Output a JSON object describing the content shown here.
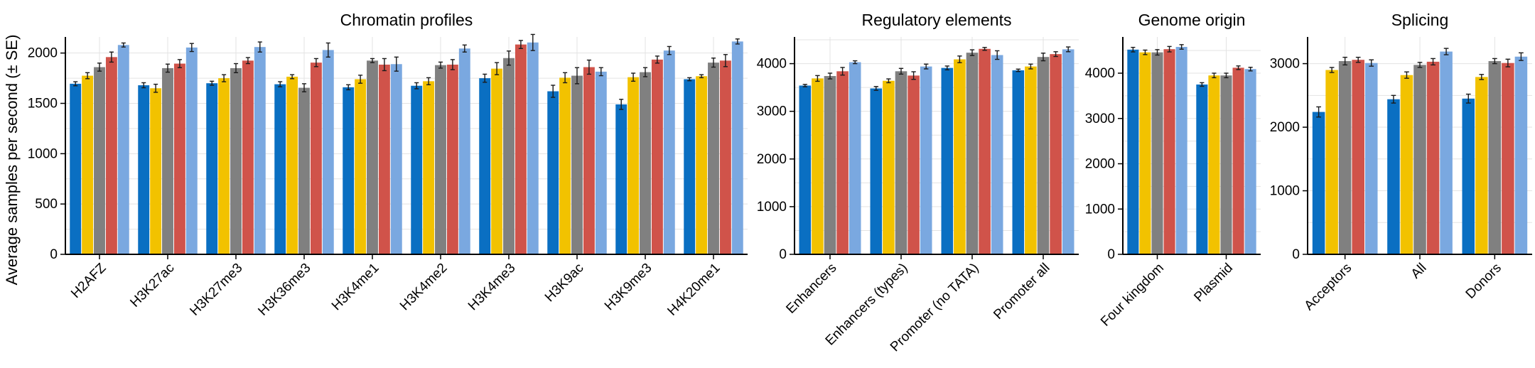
{
  "ylabel": "Average samples per second (± SE)",
  "colors": [
    "#0a6fc2",
    "#f2c200",
    "#808080",
    "#d0534a",
    "#7aa8e0"
  ],
  "chart_data": [
    {
      "type": "bar",
      "title": "Chromatin profiles",
      "ylabel": "Average samples per second (± SE)",
      "ylim": [
        0,
        2160
      ],
      "yticks": [
        0,
        500,
        1000,
        1500,
        2000
      ],
      "grid": true,
      "categories": [
        "H2AFZ",
        "H3K27ac",
        "H3K27me3",
        "H3K36me3",
        "H3K4me1",
        "H3K4me2",
        "H3K4me3",
        "H3K9ac",
        "H3K9me3",
        "H4K20me1"
      ],
      "series": [
        {
          "values": [
            1695,
            1680,
            1700,
            1690,
            1660,
            1675,
            1750,
            1620,
            1490,
            1740
          ],
          "errors": [
            20,
            25,
            20,
            25,
            25,
            30,
            40,
            60,
            50,
            15
          ]
        },
        {
          "values": [
            1775,
            1650,
            1750,
            1765,
            1740,
            1720,
            1845,
            1755,
            1760,
            1770
          ],
          "errors": [
            30,
            40,
            35,
            20,
            40,
            35,
            60,
            50,
            40,
            15
          ]
        },
        {
          "values": [
            1860,
            1850,
            1850,
            1655,
            1925,
            1880,
            1950,
            1775,
            1810,
            1905
          ],
          "errors": [
            40,
            40,
            45,
            40,
            20,
            30,
            70,
            80,
            45,
            45
          ]
        },
        {
          "values": [
            1960,
            1895,
            1925,
            1905,
            1885,
            1885,
            2085,
            1860,
            1935,
            1925
          ],
          "errors": [
            50,
            40,
            30,
            40,
            60,
            50,
            40,
            70,
            35,
            60
          ]
        },
        {
          "values": [
            2080,
            2055,
            2060,
            2030,
            1890,
            2045,
            2105,
            1815,
            2025,
            2115
          ],
          "errors": [
            20,
            40,
            50,
            70,
            70,
            35,
            80,
            40,
            40,
            25
          ]
        }
      ]
    },
    {
      "type": "bar",
      "title": "Regulatory elements",
      "ylim": [
        0,
        4560
      ],
      "yticks": [
        0,
        1000,
        2000,
        3000,
        4000
      ],
      "grid": true,
      "categories": [
        "Enhancers",
        "Enhancers (types)",
        "Promoter (no TATA)",
        "Promoter all"
      ],
      "series": [
        {
          "values": [
            3540,
            3480,
            3910,
            3860
          ],
          "errors": [
            25,
            40,
            40,
            25
          ]
        },
        {
          "values": [
            3690,
            3640,
            4090,
            3940
          ],
          "errors": [
            60,
            40,
            70,
            50
          ]
        },
        {
          "values": [
            3740,
            3840,
            4230,
            4140
          ],
          "errors": [
            60,
            60,
            60,
            80
          ]
        },
        {
          "values": [
            3840,
            3750,
            4310,
            4200
          ],
          "errors": [
            80,
            80,
            30,
            50
          ]
        },
        {
          "values": [
            4030,
            3940,
            4180,
            4300
          ],
          "errors": [
            30,
            50,
            90,
            50
          ]
        }
      ]
    },
    {
      "type": "bar",
      "title": "Genome origin",
      "ylim": [
        0,
        4800
      ],
      "yticks": [
        0,
        1000,
        2000,
        3000,
        4000
      ],
      "grid": true,
      "categories": [
        "Four kingdom",
        "Plasmid"
      ],
      "series": [
        {
          "values": [
            4520,
            3750
          ],
          "errors": [
            50,
            40
          ]
        },
        {
          "values": [
            4460,
            3950
          ],
          "errors": [
            50,
            50
          ]
        },
        {
          "values": [
            4460,
            3950
          ],
          "errors": [
            60,
            50
          ]
        },
        {
          "values": [
            4530,
            4120
          ],
          "errors": [
            60,
            40
          ]
        },
        {
          "values": [
            4580,
            4090
          ],
          "errors": [
            50,
            40
          ]
        }
      ]
    },
    {
      "type": "bar",
      "title": "Splicing",
      "ylim": [
        0,
        3420
      ],
      "yticks": [
        0,
        1000,
        2000,
        3000
      ],
      "grid": true,
      "categories": [
        "Acceptors",
        "All",
        "Donors"
      ],
      "series": [
        {
          "values": [
            2240,
            2440,
            2450
          ],
          "errors": [
            80,
            60,
            70
          ]
        },
        {
          "values": [
            2900,
            2820,
            2790
          ],
          "errors": [
            40,
            50,
            40
          ]
        },
        {
          "values": [
            3040,
            2980,
            3040
          ],
          "errors": [
            60,
            40,
            40
          ]
        },
        {
          "values": [
            3060,
            3030,
            3010
          ],
          "errors": [
            40,
            50,
            60
          ]
        },
        {
          "values": [
            3010,
            3190,
            3110
          ],
          "errors": [
            50,
            50,
            60
          ]
        }
      ]
    }
  ]
}
